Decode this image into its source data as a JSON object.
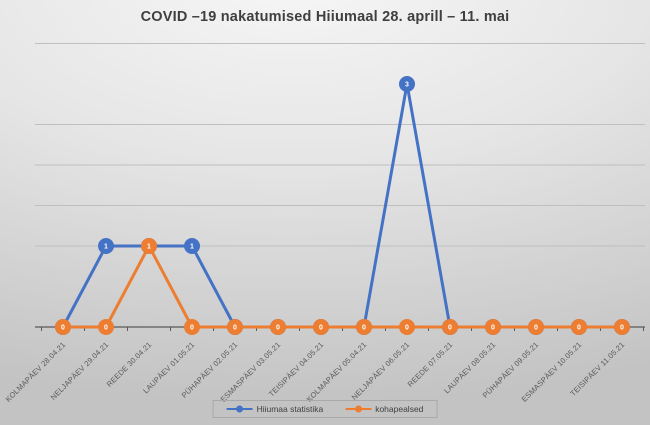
{
  "title": "COVID –19 nakatumised Hiiumaal 28. aprill – 11. mai",
  "legend": [
    {
      "label": "Hiiumaa statistika",
      "color": "#4472C4"
    },
    {
      "label": "kohapealsed",
      "color": "#ED7D31"
    }
  ],
  "chart_data": {
    "type": "line",
    "title": "COVID –19 nakatumised Hiiumaal 28. aprill – 11. mai",
    "categories": [
      "KOLMAPÄEV 28.04.21",
      "NELJAPÄEV 29.04.21",
      "REEDE 30.04.21",
      "LAUPÄEV 01.05.21",
      "PÜHAPÄEV 02.05.21",
      "ESMASPÄEV 03.05.21",
      "TEISIPÄEV 04.05.21",
      "KOLMAPÄEV 05.04.21",
      "NELJAPÄEV 06.05.21",
      "REEDE 07.05.21",
      "LAUPÄEV 08.05.21",
      "PÜHAPÄEV 09.05.21",
      "ESMASPÄEV 10.05.21",
      "TEISIPÄEV 11.05.21"
    ],
    "series": [
      {
        "name": "Hiiumaa statistika",
        "color": "#4472C4",
        "values": [
          0,
          1,
          1,
          1,
          0,
          0,
          0,
          0,
          3,
          0,
          0,
          0,
          0,
          0
        ]
      },
      {
        "name": "kohapealsed",
        "color": "#ED7D31",
        "values": [
          0,
          0,
          1,
          0,
          0,
          0,
          0,
          0,
          0,
          0,
          0,
          0,
          0,
          0
        ]
      }
    ],
    "ylim": [
      0,
      3.5
    ],
    "gridline_values": [
      1,
      1.5,
      2,
      2.5,
      3.5
    ],
    "data_labels": true,
    "grid": true,
    "legend_position": "bottom",
    "x_tick_rotation": -45
  },
  "colors": {
    "gridline": "#bfbfbf",
    "axis_line": "#595959",
    "title_text": "#3f3f3f",
    "axis_label_text": "#595959",
    "data_label_text": "#ffffff",
    "legend_border": "#a9a9a9",
    "legend_text": "#404040"
  }
}
